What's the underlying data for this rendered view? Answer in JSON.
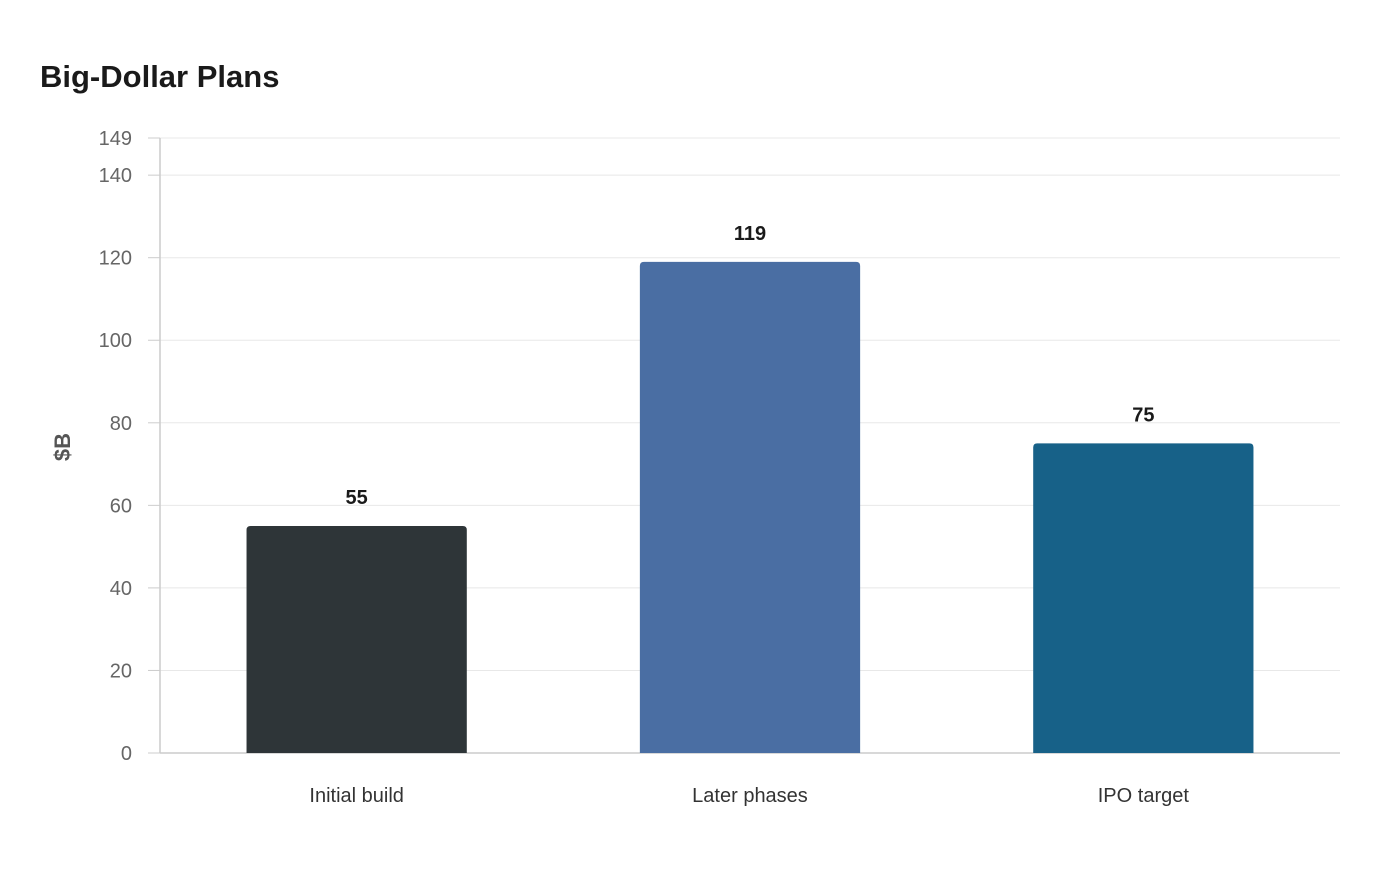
{
  "chart_data": {
    "type": "bar",
    "title": "Big-Dollar Plans",
    "xlabel": "",
    "ylabel": "$B",
    "categories": [
      "Initial build",
      "Later phases",
      "IPO target"
    ],
    "values": [
      55,
      119,
      75
    ],
    "colors": [
      "#2e3538",
      "#4a6ea3",
      "#176188"
    ],
    "ylim": [
      0,
      149
    ],
    "yticks": [
      0,
      20,
      40,
      60,
      80,
      100,
      120,
      140,
      149
    ],
    "grid": true,
    "legend": "none"
  }
}
